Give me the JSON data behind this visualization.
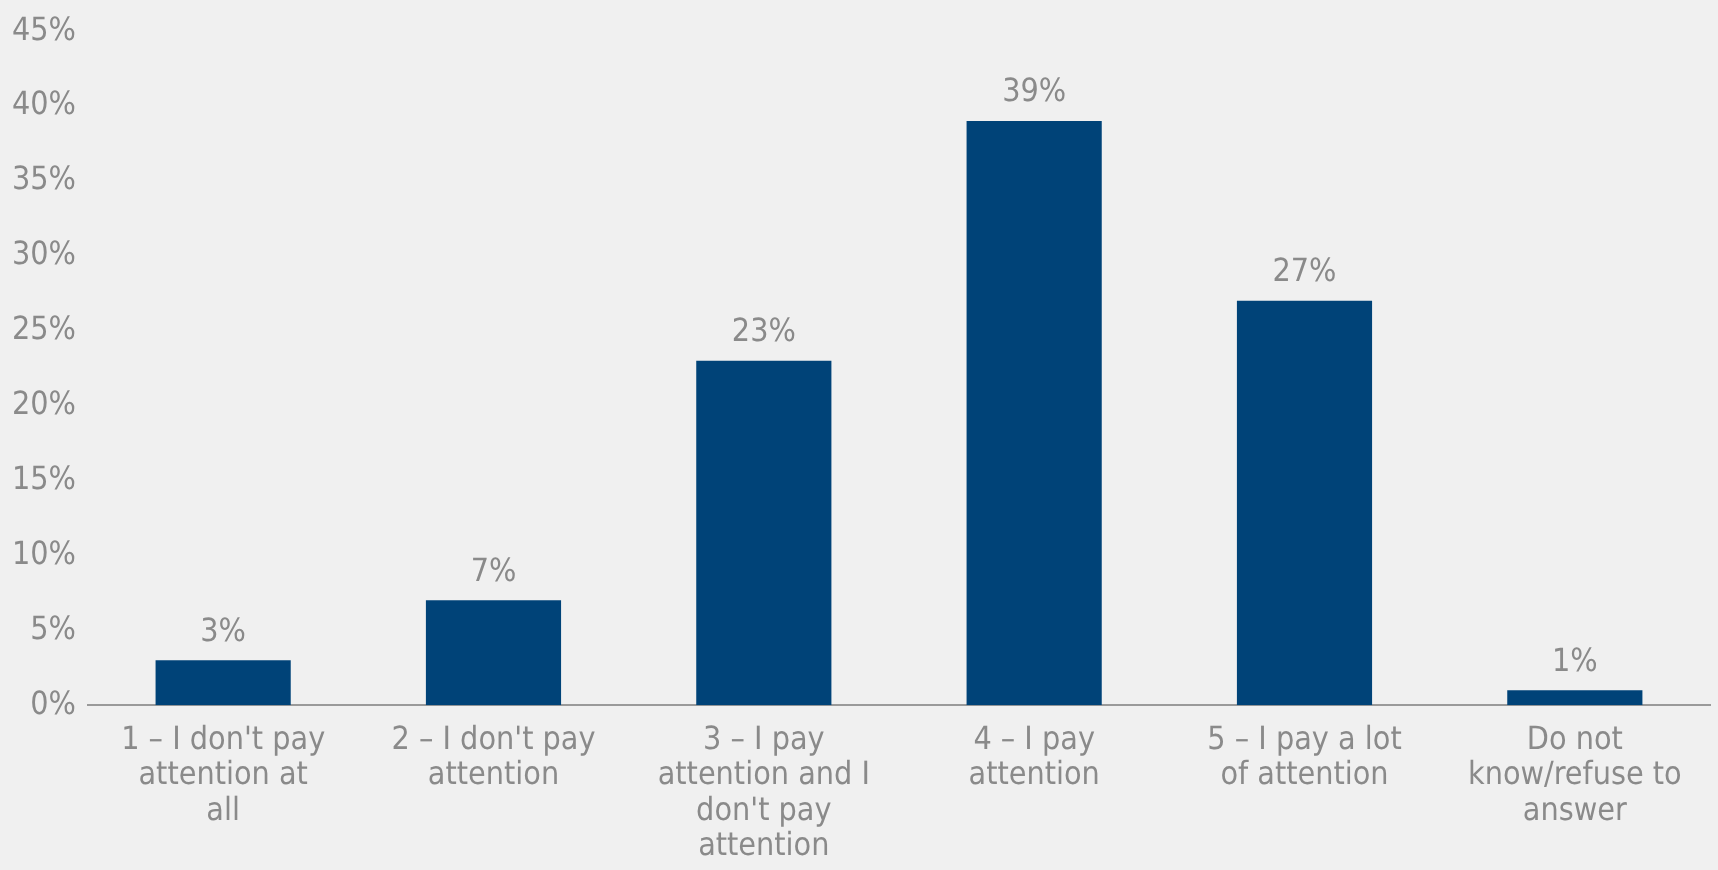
{
  "chart_data": {
    "type": "bar",
    "categories": [
      "1 – I don't pay attention at all",
      "2 – I don't pay attention",
      "3 – I pay attention and I don't pay attention",
      "4 – I pay attention",
      "5 – I pay a lot of attention",
      "Do not know/refuse to answer"
    ],
    "values": [
      3,
      7,
      23,
      39,
      27,
      1
    ],
    "value_labels": [
      "3%",
      "7%",
      "23%",
      "39%",
      "27%",
      "1%"
    ],
    "color": "#004378",
    "ylim": [
      0,
      45
    ],
    "yticks": [
      {
        "value": 0,
        "label": "0%"
      },
      {
        "value": 5,
        "label": "5%"
      },
      {
        "value": 10,
        "label": "10%"
      },
      {
        "value": 15,
        "label": "15%"
      },
      {
        "value": 20,
        "label": "20%"
      },
      {
        "value": 25,
        "label": "25%"
      },
      {
        "value": 30,
        "label": "30%"
      },
      {
        "value": 35,
        "label": "35%"
      },
      {
        "value": 40,
        "label": "40%"
      },
      {
        "value": 45,
        "label": "45%"
      }
    ],
    "grid": false,
    "legend": false
  }
}
